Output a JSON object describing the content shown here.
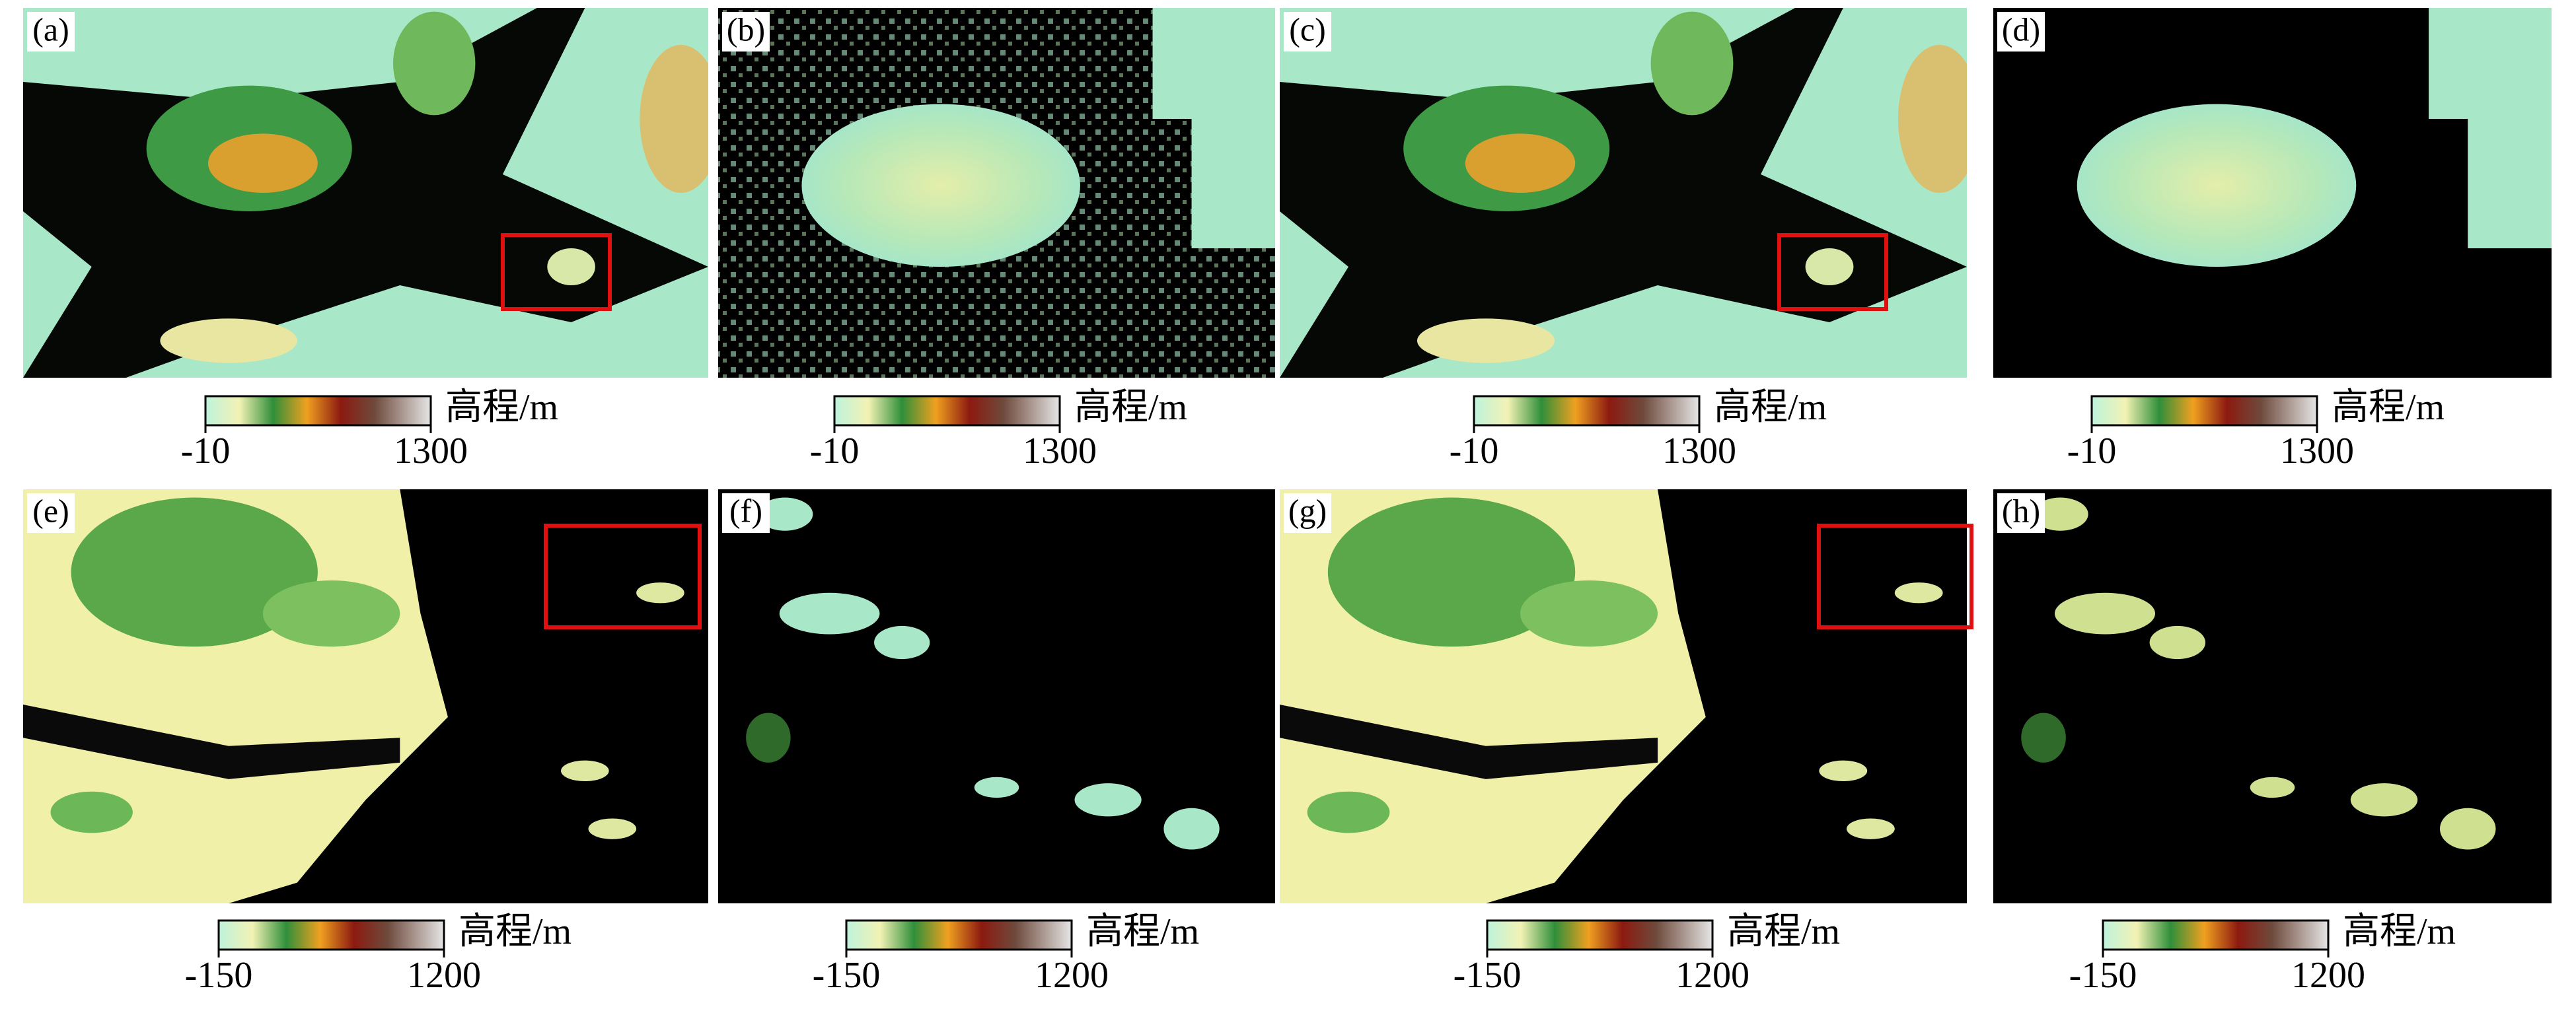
{
  "panels": [
    {
      "label": "(a)",
      "colorbar": {
        "min": "-10",
        "max": "1300",
        "unit": "高程/m"
      }
    },
    {
      "label": "(b)",
      "colorbar": {
        "min": "-10",
        "max": "1300",
        "unit": "高程/m"
      }
    },
    {
      "label": "(c)",
      "colorbar": {
        "min": "-10",
        "max": "1300",
        "unit": "高程/m"
      }
    },
    {
      "label": "(d)",
      "colorbar": {
        "min": "-10",
        "max": "1300",
        "unit": "高程/m"
      }
    },
    {
      "label": "(e)",
      "colorbar": {
        "min": "-150",
        "max": "1200",
        "unit": "高程/m"
      }
    },
    {
      "label": "(f)",
      "colorbar": {
        "min": "-150",
        "max": "1200",
        "unit": "高程/m"
      }
    },
    {
      "label": "(g)",
      "colorbar": {
        "min": "-150",
        "max": "1200",
        "unit": "高程/m"
      }
    },
    {
      "label": "(h)",
      "colorbar": {
        "min": "-150",
        "max": "1200",
        "unit": "高程/m"
      }
    }
  ]
}
